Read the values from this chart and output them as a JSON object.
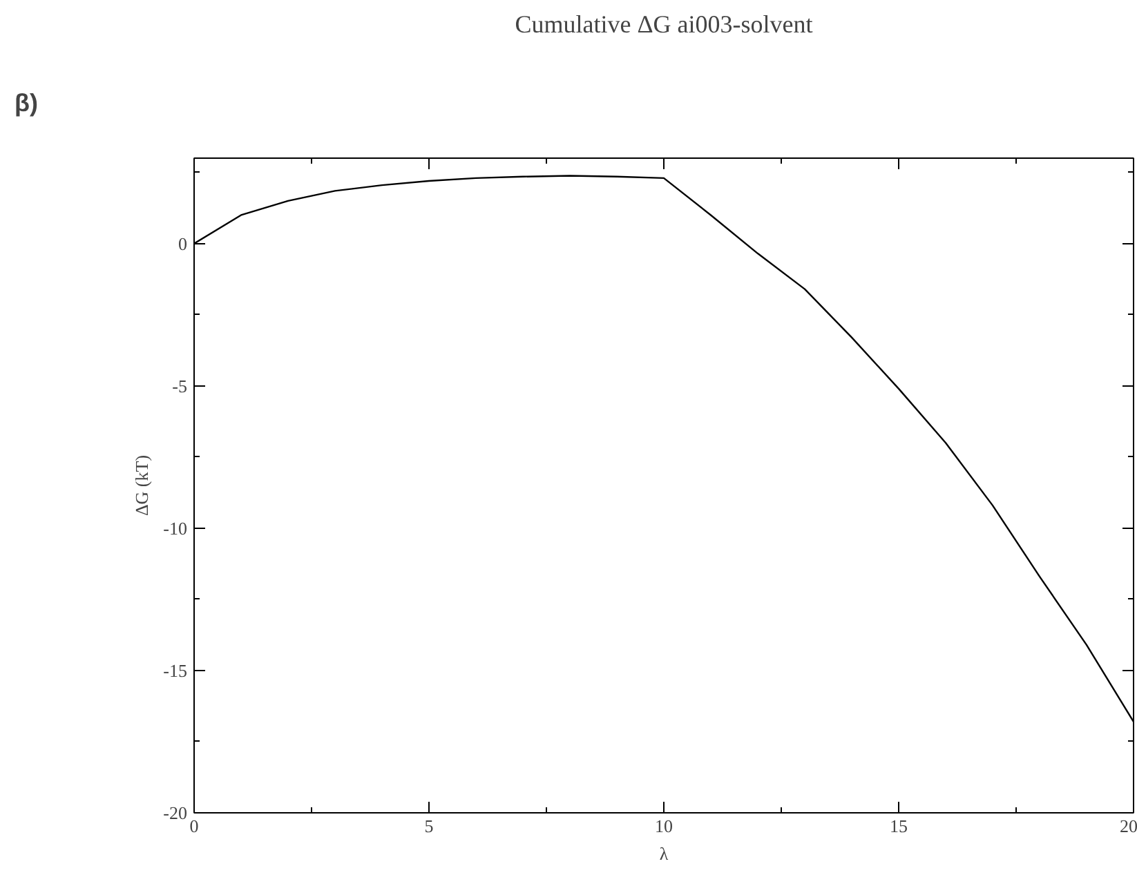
{
  "chart_data": {
    "type": "line",
    "title": "Cumulative ΔG ai003-solvent",
    "xlabel": "λ",
    "ylabel": "ΔG (kT)",
    "annotations": [
      "β)"
    ],
    "x": [
      0,
      1,
      2,
      3,
      4,
      5,
      6,
      7,
      8,
      9,
      10,
      11,
      12,
      13,
      14,
      15,
      16,
      17,
      18,
      19,
      20
    ],
    "series": [
      {
        "color": "#000000",
        "values": [
          0,
          1.0,
          1.5,
          1.85,
          2.05,
          2.2,
          2.3,
          2.35,
          2.38,
          2.35,
          2.3,
          1.0,
          -0.35,
          -1.6,
          -3.3,
          -5.1,
          -7.0,
          -9.2,
          -11.7,
          -14.1,
          -16.8
        ]
      }
    ],
    "xlim": [
      0,
      20
    ],
    "ylim": [
      -20,
      3
    ],
    "xticks": [
      0,
      {
        "value": 2.5,
        "label": null
      },
      5,
      {
        "value": 7.5,
        "label": null
      },
      10,
      {
        "value": 12.5,
        "label": null
      },
      15,
      {
        "value": 17.5,
        "label": null
      },
      20
    ],
    "yticks": [
      -20,
      {
        "value": -17.5,
        "label": null
      },
      -15,
      {
        "value": -12.5,
        "label": null
      },
      -10,
      {
        "value": -7.5,
        "label": null
      },
      -5,
      {
        "value": -2.5,
        "label": null
      },
      0,
      {
        "value": 2.5,
        "label": null
      }
    ],
    "grid": false,
    "marker": "none",
    "line_style": "solid"
  }
}
